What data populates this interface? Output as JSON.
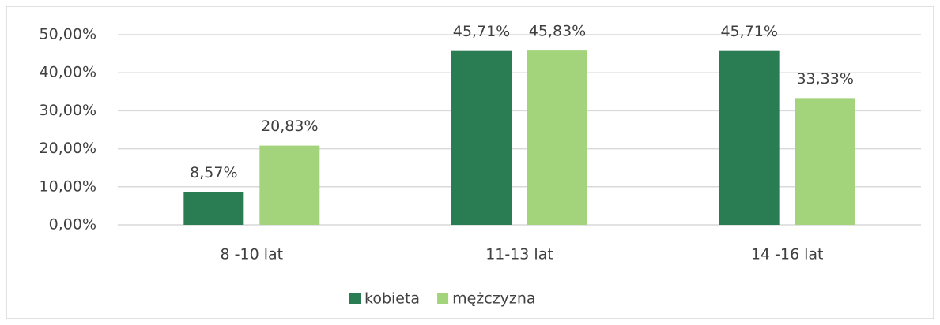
{
  "chart_data": {
    "type": "bar",
    "categories": [
      "8 -10 lat",
      "11-13 lat",
      "14 -16 lat"
    ],
    "series": [
      {
        "name": "kobieta",
        "color": "#2a7d52",
        "values": [
          8.57,
          45.71,
          45.71
        ],
        "value_labels": [
          "8,57%",
          "45,71%",
          "45,71%"
        ]
      },
      {
        "name": "mężczyzna",
        "color": "#a3d47c",
        "values": [
          20.83,
          45.83,
          33.33
        ],
        "value_labels": [
          "20,83%",
          "45,83%",
          "33,33%"
        ]
      }
    ],
    "ylim": [
      0,
      50
    ],
    "yticks": [
      {
        "value": 0,
        "label": "0,00%"
      },
      {
        "value": 10,
        "label": "10,00%"
      },
      {
        "value": 20,
        "label": "20,00%"
      },
      {
        "value": 30,
        "label": "30,00%"
      },
      {
        "value": 40,
        "label": "40,00%"
      },
      {
        "value": 50,
        "label": "50,00%"
      }
    ],
    "grid": true,
    "legend": "bottom"
  }
}
